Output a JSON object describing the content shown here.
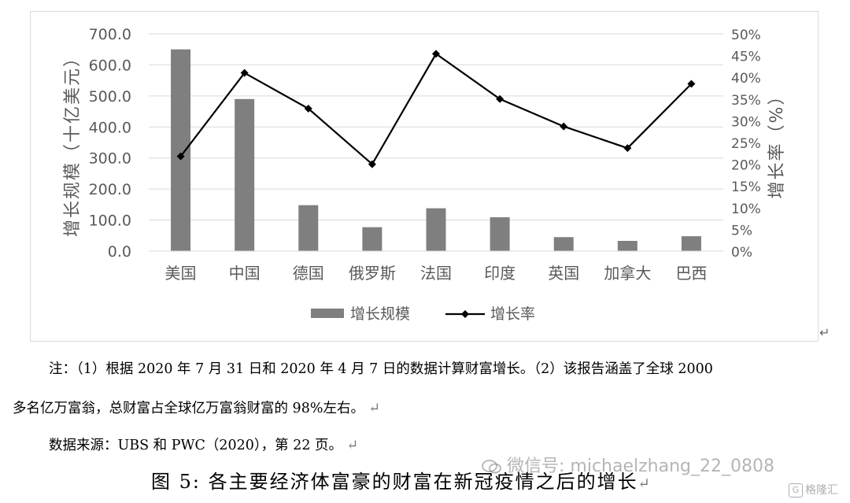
{
  "chart_data": {
    "type": "bar+line",
    "categories": [
      "美国",
      "中国",
      "德国",
      "俄罗斯",
      "法国",
      "印度",
      "英国",
      "加拿大",
      "巴西"
    ],
    "series": [
      {
        "name": "增长规模",
        "type": "bar",
        "axis": "left",
        "color": "#7f7f7f",
        "values": [
          650.0,
          490.0,
          148.0,
          77.0,
          138.0,
          109.0,
          45.0,
          33.0,
          48.0
        ]
      },
      {
        "name": "增长率",
        "type": "line",
        "axis": "right",
        "color": "#000000",
        "marker": "diamond",
        "values": [
          21.8,
          41.0,
          32.8,
          20.0,
          45.4,
          35.0,
          28.7,
          23.7,
          38.5
        ]
      }
    ],
    "ylabel": "增长规模（十亿美元）",
    "y2label": "增长率（%）",
    "ylim": [
      0,
      700
    ],
    "y2lim": [
      0,
      50
    ],
    "yticks": [
      "0.0",
      "100.0",
      "200.0",
      "300.0",
      "400.0",
      "500.0",
      "600.0",
      "700.0"
    ],
    "y2ticks": [
      "0%",
      "5%",
      "10%",
      "15%",
      "20%",
      "25%",
      "30%",
      "35%",
      "40%",
      "45%",
      "50%"
    ],
    "grid": true,
    "legend_position": "bottom"
  },
  "notes": {
    "line1": "注：（1）根据 2020 年 7 月 31 日和 2020 年 4 月 7 日的数据计算财富增长。（2）该报告涵盖了全球 2000",
    "line2": "多名亿万富翁，总财富占全球亿万富翁财富的 98%左右。",
    "source": "数据来源：UBS  和  PWC（2020），第 22 页。"
  },
  "caption": "图 5: 各主要经济体富豪的财富在新冠疫情之后的增长",
  "watermark": "微信号: michaelzhang_22_0808",
  "logo_text": "格隆汇",
  "logo_icon": "G",
  "paragraph_mark": "↵"
}
